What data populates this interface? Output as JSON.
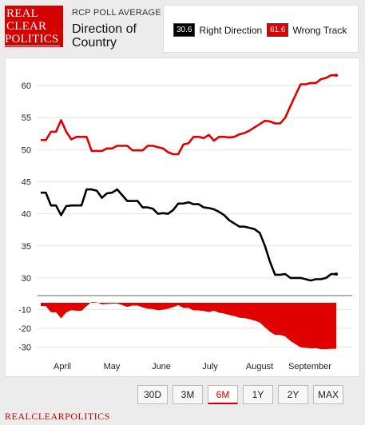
{
  "brand": {
    "logo_lines": [
      "REAL",
      "CLEAR",
      "POLITICS"
    ],
    "footer": "REALCLEARPOLITICS"
  },
  "header": {
    "kicker": "RCP POLL AVERAGE",
    "title": "Direction of Country"
  },
  "legend": {
    "items": [
      {
        "badge": "30.6",
        "label": "Right Direction",
        "color": "#000000"
      },
      {
        "badge": "61.6",
        "label": "Wrong Track",
        "color": "#e00000"
      }
    ]
  },
  "ranges": {
    "buttons": [
      "30D",
      "3M",
      "6M",
      "1Y",
      "2Y",
      "MAX"
    ],
    "active": "6M"
  },
  "chart_data": [
    {
      "type": "line",
      "x_labels": [
        "April",
        "May",
        "June",
        "July",
        "August",
        "September"
      ],
      "ylim": [
        27.5,
        63
      ],
      "y_ticks": [
        30,
        35,
        40,
        45,
        50,
        55,
        60
      ],
      "grid": true,
      "series": [
        {
          "name": "Wrong Track",
          "color": "#e00000",
          "values": [
            51.5,
            51.5,
            52.8,
            52.8,
            54.6,
            52.8,
            51.6,
            52.0,
            52.0,
            52.0,
            49.8,
            49.8,
            49.8,
            50.2,
            50.2,
            50.6,
            50.6,
            50.6,
            49.9,
            49.9,
            49.9,
            50.6,
            50.6,
            50.4,
            50.2,
            49.6,
            49.3,
            49.3,
            50.8,
            51.0,
            52.0,
            52.0,
            51.8,
            52.3,
            51.4,
            52.0,
            52.0,
            51.9,
            52.0,
            52.4,
            52.6,
            53.0,
            53.5,
            54.0,
            54.5,
            54.4,
            54.1,
            54.1,
            55.0,
            56.8,
            58.5,
            60.2,
            60.2,
            60.4,
            60.4,
            61.0,
            61.2,
            61.6,
            61.6
          ]
        },
        {
          "name": "Right Direction",
          "color": "#000000",
          "values": [
            43.3,
            43.3,
            41.3,
            41.3,
            39.8,
            41.2,
            41.3,
            41.3,
            41.3,
            43.8,
            43.8,
            43.6,
            42.5,
            43.2,
            43.3,
            43.8,
            42.9,
            42.0,
            42.0,
            42.0,
            41.0,
            41.0,
            40.8,
            40.0,
            40.1,
            40.0,
            40.6,
            41.6,
            41.6,
            41.8,
            41.5,
            41.5,
            41.0,
            40.9,
            40.7,
            40.3,
            39.8,
            39.0,
            38.5,
            38.0,
            38.0,
            37.8,
            37.6,
            37.0,
            35.0,
            32.5,
            30.5,
            30.5,
            30.6,
            30.0,
            30.0,
            30.0,
            29.8,
            29.6,
            29.8,
            29.8,
            30.0,
            30.6,
            30.6
          ]
        }
      ]
    },
    {
      "type": "area",
      "ylim": [
        -32,
        -6
      ],
      "y_ticks": [
        -10,
        -20,
        -30
      ],
      "color": "#e00000",
      "values": [
        -8.2,
        -8.2,
        -11.5,
        -11.5,
        -14.8,
        -11.6,
        -10.3,
        -10.7,
        -10.7,
        -8.2,
        -6.0,
        -6.2,
        -7.3,
        -7.0,
        -6.9,
        -6.8,
        -7.7,
        -8.6,
        -7.9,
        -7.9,
        -8.9,
        -9.6,
        -9.8,
        -10.4,
        -10.1,
        -9.6,
        -8.7,
        -7.7,
        -9.2,
        -9.2,
        -10.5,
        -10.5,
        -10.8,
        -11.4,
        -10.7,
        -11.7,
        -12.2,
        -12.9,
        -13.5,
        -14.4,
        -14.6,
        -15.2,
        -15.9,
        -17.0,
        -19.5,
        -21.9,
        -23.6,
        -23.6,
        -24.4,
        -26.8,
        -28.5,
        -30.2,
        -30.4,
        -30.8,
        -30.6,
        -31.2,
        -31.2,
        -31.0,
        -31.0
      ]
    }
  ]
}
